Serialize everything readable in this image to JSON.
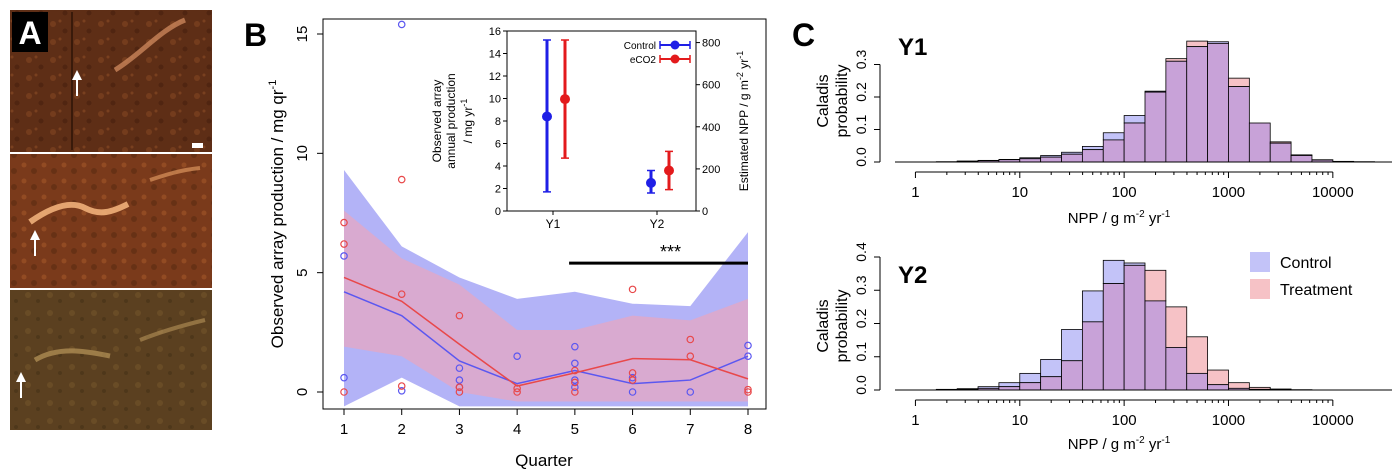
{
  "panels": {
    "a": {
      "label": "A"
    },
    "b": {
      "label": "B"
    },
    "c": {
      "label": "C"
    }
  },
  "photo_colors": [
    "#5e2e16",
    "#7a3a1b",
    "#5b4020"
  ],
  "colors": {
    "control": "#5b57f0",
    "treatment": "#e8484a",
    "control_band": "#b3b3f7",
    "treatment_band": "#e2a7c5",
    "overlap_fill": "#c8a2d8",
    "control_only_fill": "#c3c3f8",
    "treatment_only_fill": "#f6c2c6",
    "inset_control": "#1f1fe6",
    "inset_treatment": "#e31a1c"
  },
  "chart_data": [
    {
      "type": "line",
      "panel": "B",
      "xlabel": "Quarter",
      "ylabel": "Observed array production / mg qr",
      "ylabel_sup": "-1",
      "x": [
        1,
        2,
        3,
        4,
        5,
        6,
        7,
        8
      ],
      "xlim": [
        0.7,
        8.3
      ],
      "ylim": [
        -0.6,
        16
      ],
      "xticks": [
        "1",
        "2",
        "3",
        "4",
        "5",
        "6",
        "7",
        "8"
      ],
      "yticks": [
        "0",
        "5",
        "10",
        "15"
      ],
      "significance": {
        "label": "***",
        "x": [
          4.9,
          8
        ],
        "y": 5.4
      },
      "series": [
        {
          "key": "control",
          "line": [
            4.2,
            3.2,
            1.3,
            0.35,
            0.9,
            0.35,
            0.5,
            1.5
          ],
          "band_upper": [
            9.3,
            6.1,
            4.8,
            3.9,
            4.2,
            3.7,
            3.6,
            6.7
          ],
          "band_lower": [
            -0.6,
            0.6,
            -0.6,
            -0.6,
            -0.6,
            -0.6,
            -0.6,
            -0.6
          ],
          "points": [
            [
              1,
              5.7
            ],
            [
              1,
              0.6
            ],
            [
              2,
              15.4
            ],
            [
              2,
              0.05
            ],
            [
              3,
              1.0
            ],
            [
              3,
              0.5
            ],
            [
              3,
              0.2
            ],
            [
              4,
              1.5
            ],
            [
              5,
              1.9
            ],
            [
              5,
              1.2
            ],
            [
              5,
              0.5
            ],
            [
              5,
              0.2
            ],
            [
              6,
              0.6
            ],
            [
              6,
              0.0
            ],
            [
              7,
              0.0
            ],
            [
              8,
              1.95
            ],
            [
              8,
              1.5
            ]
          ]
        },
        {
          "key": "treatment",
          "line": [
            4.8,
            3.8,
            2.0,
            0.25,
            0.8,
            1.4,
            1.35,
            0.55
          ],
          "band_upper": [
            7.6,
            5.6,
            4.5,
            2.6,
            2.6,
            3.2,
            3.0,
            3.9
          ],
          "band_lower": [
            1.9,
            1.5,
            0.0,
            -0.4,
            -0.4,
            -0.4,
            -0.4,
            -0.4
          ],
          "points": [
            [
              1,
              7.1
            ],
            [
              1,
              6.2
            ],
            [
              1,
              0.0
            ],
            [
              2,
              8.9
            ],
            [
              2,
              4.1
            ],
            [
              2,
              0.25
            ],
            [
              3,
              3.2
            ],
            [
              3,
              0.2
            ],
            [
              3,
              0.0
            ],
            [
              4,
              0.15
            ],
            [
              4,
              0.0
            ],
            [
              5,
              0.9
            ],
            [
              5,
              0.4
            ],
            [
              5,
              0.0
            ],
            [
              6,
              4.3
            ],
            [
              6,
              0.8
            ],
            [
              6,
              0.5
            ],
            [
              7,
              2.2
            ],
            [
              7,
              1.5
            ],
            [
              8,
              0.1
            ],
            [
              8,
              0.0
            ]
          ]
        }
      ]
    },
    {
      "type": "scatter",
      "panel": "B-inset",
      "ylabel_lines": [
        "Observed array",
        "annual production",
        "/ mg yr"
      ],
      "ylabel_sup": "-1",
      "ylabel_right": "Estimated NPP / g m",
      "ylabel_right_sup": "-2",
      "ylabel_right_tail": " yr",
      "ylabel_right_sup2": "-1",
      "categories": [
        "Y1",
        "Y2"
      ],
      "ylim": [
        0,
        16
      ],
      "yticks": [
        "0",
        "2",
        "4",
        "6",
        "8",
        "10",
        "12",
        "14",
        "16"
      ],
      "yticks_right": [
        "0",
        "200",
        "400",
        "600",
        "800"
      ],
      "ylim_right": [
        0,
        855
      ],
      "series": [
        {
          "name": "Control",
          "key": "control",
          "values": [
            8.4,
            2.5
          ],
          "lower": [
            1.7,
            1.6
          ],
          "upper": [
            15.2,
            3.6
          ]
        },
        {
          "name": "eCO2",
          "key": "treatment",
          "values": [
            9.95,
            3.6
          ],
          "lower": [
            4.7,
            1.9
          ],
          "upper": [
            15.2,
            5.3
          ]
        }
      ]
    },
    {
      "type": "bar",
      "panel": "C-Y1",
      "title": "Y1",
      "xlabel": "NPP / g m",
      "xlabel_sup": "-2",
      "xlabel_tail": "  yr",
      "xlabel_sup2": "-1",
      "ylabel_lines": [
        "Caladis",
        "probability"
      ],
      "x_scale": "log",
      "xticks": [
        "1",
        "10",
        "100",
        "1000",
        "10000"
      ],
      "xtick_values": [
        1,
        10,
        100,
        1000,
        10000
      ],
      "xlim_log10": [
        -0.1,
        4.5
      ],
      "ylim": [
        0,
        0.4
      ],
      "yticks": [
        "0.0",
        "0.1",
        "0.2",
        "0.3"
      ],
      "bin_edges_log10": [
        0.2,
        0.4,
        0.6,
        0.8,
        1.0,
        1.2,
        1.4,
        1.6,
        1.8,
        2.0,
        2.2,
        2.4,
        2.6,
        2.8,
        3.0,
        3.2,
        3.4,
        3.6,
        3.8,
        4.0,
        4.2,
        4.4
      ],
      "series": [
        {
          "name": "Control",
          "key": "control",
          "values": [
            0.001,
            0.003,
            0.005,
            0.008,
            0.013,
            0.02,
            0.03,
            0.048,
            0.09,
            0.143,
            0.218,
            0.31,
            0.355,
            0.37,
            0.232,
            0.12,
            0.058,
            0.02,
            0.006,
            0.002,
            0.001
          ]
        },
        {
          "name": "Treatment",
          "key": "treatment",
          "values": [
            0.001,
            0.002,
            0.004,
            0.007,
            0.01,
            0.015,
            0.024,
            0.038,
            0.068,
            0.12,
            0.215,
            0.318,
            0.372,
            0.365,
            0.258,
            0.12,
            0.062,
            0.022,
            0.007,
            0.002,
            0.001
          ]
        }
      ]
    },
    {
      "type": "bar",
      "panel": "C-Y2",
      "title": "Y2",
      "xlabel": "NPP / g m",
      "xlabel_sup": "-2",
      "xlabel_tail": "  yr",
      "xlabel_sup2": "-1",
      "ylabel_lines": [
        "Caladis",
        "probability"
      ],
      "x_scale": "log",
      "xticks": [
        "1",
        "10",
        "100",
        "1000",
        "10000"
      ],
      "xtick_values": [
        1,
        10,
        100,
        1000,
        10000
      ],
      "xlim_log10": [
        -0.1,
        4.5
      ],
      "ylim": [
        0,
        0.4
      ],
      "yticks": [
        "0.0",
        "0.1",
        "0.2",
        "0.3",
        "0.4"
      ],
      "legend": {
        "position": "right",
        "entries": [
          "Control",
          "Treatment"
        ]
      },
      "bin_edges_log10": [
        0.2,
        0.4,
        0.6,
        0.8,
        1.0,
        1.2,
        1.4,
        1.6,
        1.8,
        2.0,
        2.2,
        2.4,
        2.6,
        2.8,
        3.0,
        3.2,
        3.4,
        3.6,
        3.8,
        4.0,
        4.2,
        4.4
      ],
      "series": [
        {
          "name": "Control",
          "key": "control",
          "values": [
            0.002,
            0.004,
            0.01,
            0.022,
            0.05,
            0.092,
            0.182,
            0.298,
            0.39,
            0.382,
            0.268,
            0.128,
            0.05,
            0.016,
            0.005,
            0.002,
            0.001,
            0.0,
            0.0,
            0.0,
            0.0
          ]
        },
        {
          "name": "Treatment",
          "key": "treatment",
          "values": [
            0.001,
            0.002,
            0.005,
            0.01,
            0.022,
            0.04,
            0.088,
            0.205,
            0.32,
            0.375,
            0.36,
            0.25,
            0.16,
            0.06,
            0.022,
            0.008,
            0.003,
            0.001,
            0.0,
            0.0,
            0.0
          ]
        }
      ]
    }
  ]
}
